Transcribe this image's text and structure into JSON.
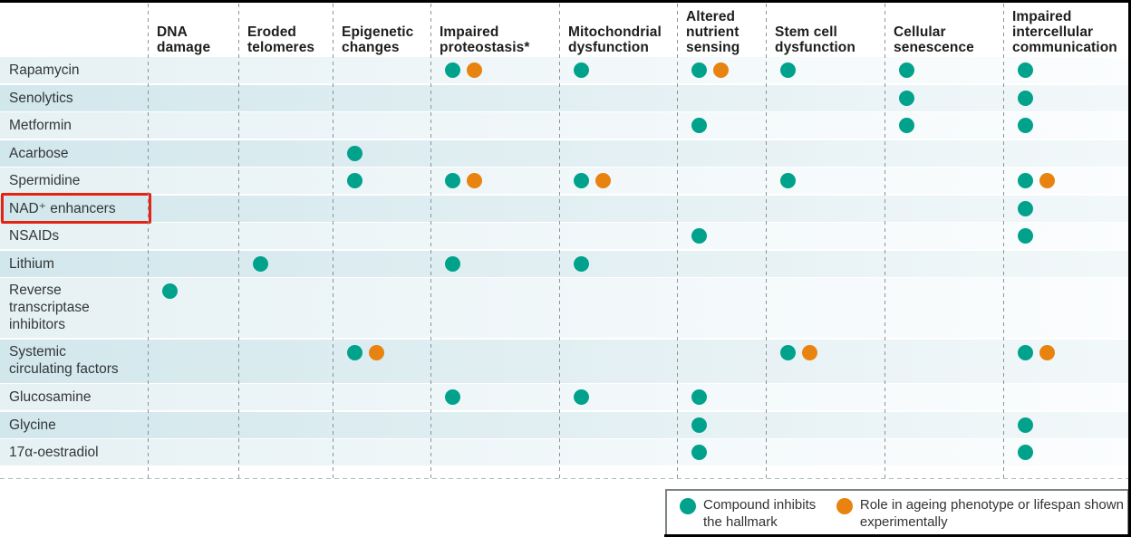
{
  "chart_data": {
    "type": "table",
    "description": "Matrix figure: compounds (rows) versus hallmarks of ageing (columns); dots mark effects",
    "columns": [
      "DNA damage",
      "Eroded telomeres",
      "Epigenetic changes",
      "Impaired proteostasis*",
      "Mitochondrial dysfunction",
      "Altered nutrient sensing",
      "Stem cell dysfunction",
      "Cellular senescence",
      "Impaired intercellular communication"
    ],
    "mark_codes": {
      "T": "teal dot — compound inhibits the hallmark",
      "TO": "teal dot plus orange dot — inhibits hallmark and role in ageing phenotype or lifespan shown experimentally"
    },
    "rows": [
      {
        "label": "Rapamycin",
        "highlighted": false,
        "marks": [
          "",
          "",
          "",
          "TO",
          "T",
          "TO",
          "T",
          "T",
          "T"
        ]
      },
      {
        "label": "Senolytics",
        "highlighted": false,
        "marks": [
          "",
          "",
          "",
          "",
          "",
          "",
          "",
          "T",
          "T"
        ]
      },
      {
        "label": "Metformin",
        "highlighted": false,
        "marks": [
          "",
          "",
          "",
          "",
          "",
          "T",
          "",
          "T",
          "T"
        ]
      },
      {
        "label": "Acarbose",
        "highlighted": false,
        "marks": [
          "",
          "",
          "T",
          "",
          "",
          "",
          "",
          "",
          ""
        ]
      },
      {
        "label": "Spermidine",
        "highlighted": false,
        "marks": [
          "",
          "",
          "T",
          "TO",
          "TO",
          "",
          "T",
          "",
          "TO"
        ]
      },
      {
        "label": "NAD⁺ enhancers",
        "highlighted": true,
        "marks": [
          "",
          "",
          "",
          "",
          "",
          "",
          "",
          "",
          "T"
        ]
      },
      {
        "label": "NSAIDs",
        "highlighted": false,
        "marks": [
          "",
          "",
          "",
          "",
          "",
          "T",
          "",
          "",
          "T"
        ]
      },
      {
        "label": "Lithium",
        "highlighted": false,
        "marks": [
          "",
          "T",
          "",
          "T",
          "T",
          "",
          "",
          "",
          ""
        ]
      },
      {
        "label": "Reverse transcriptase inhibitors",
        "highlighted": false,
        "marks": [
          "T",
          "",
          "",
          "",
          "",
          "",
          "",
          "",
          ""
        ]
      },
      {
        "label": "Systemic circulating factors",
        "highlighted": false,
        "marks": [
          "",
          "",
          "TO",
          "",
          "",
          "",
          "TO",
          "",
          "TO"
        ]
      },
      {
        "label": "Glucosamine",
        "highlighted": false,
        "marks": [
          "",
          "",
          "",
          "T",
          "T",
          "T",
          "",
          "",
          ""
        ]
      },
      {
        "label": "Glycine",
        "highlighted": false,
        "marks": [
          "",
          "",
          "",
          "",
          "",
          "T",
          "",
          "",
          "T"
        ]
      },
      {
        "label": "17α-oestradiol",
        "highlighted": false,
        "marks": [
          "",
          "",
          "",
          "",
          "",
          "T",
          "",
          "",
          "T"
        ]
      }
    ],
    "legend": {
      "items": [
        {
          "name": "teal-dot",
          "color": "#00a28c",
          "label": "Compound inhibits the hallmark"
        },
        {
          "name": "orange-dot",
          "color": "#e8830f",
          "label": "Role in ageing phenotype or lifespan shown experimentally"
        }
      ]
    },
    "colors": {
      "teal": "#00a28c",
      "orange": "#e8830f",
      "highlight_red": "#e42313",
      "row_band_light": "#e6f1f4",
      "row_band_dark": "#d2e7ec"
    }
  }
}
